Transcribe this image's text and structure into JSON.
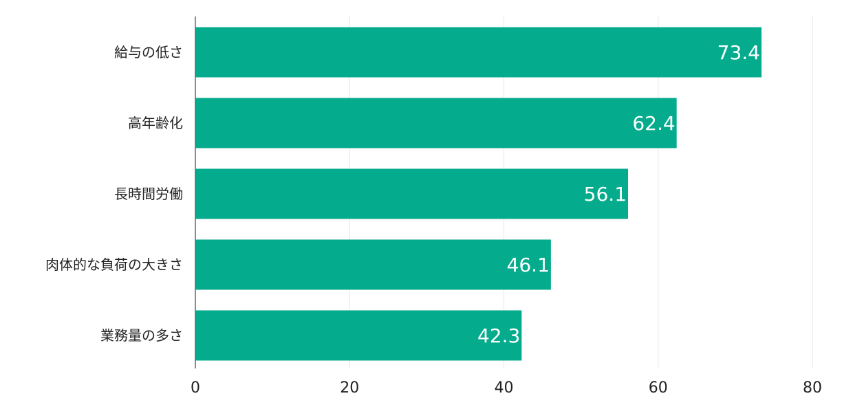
{
  "chart_data": {
    "type": "bar",
    "orientation": "horizontal",
    "categories": [
      "給与の低さ",
      "高年齢化",
      "長時間労働",
      "肉体的な負荷の大きさ",
      "業務量の多さ"
    ],
    "values": [
      73.4,
      62.4,
      56.1,
      46.1,
      42.3
    ],
    "data_labels": [
      "73.4",
      "62.4",
      "56.1",
      "46.1",
      "42.3"
    ],
    "xlim": [
      0,
      80
    ],
    "xticks": [
      0,
      20,
      40,
      60,
      80
    ],
    "xtick_labels": [
      "0",
      "20",
      "40",
      "60",
      "80"
    ],
    "grid": true,
    "legend": "none",
    "colors": {
      "bar": "#05ab8d",
      "grid": "#e6e6e6",
      "axis": "#666666",
      "text": "#222222",
      "data_label": "#ffffff"
    }
  }
}
